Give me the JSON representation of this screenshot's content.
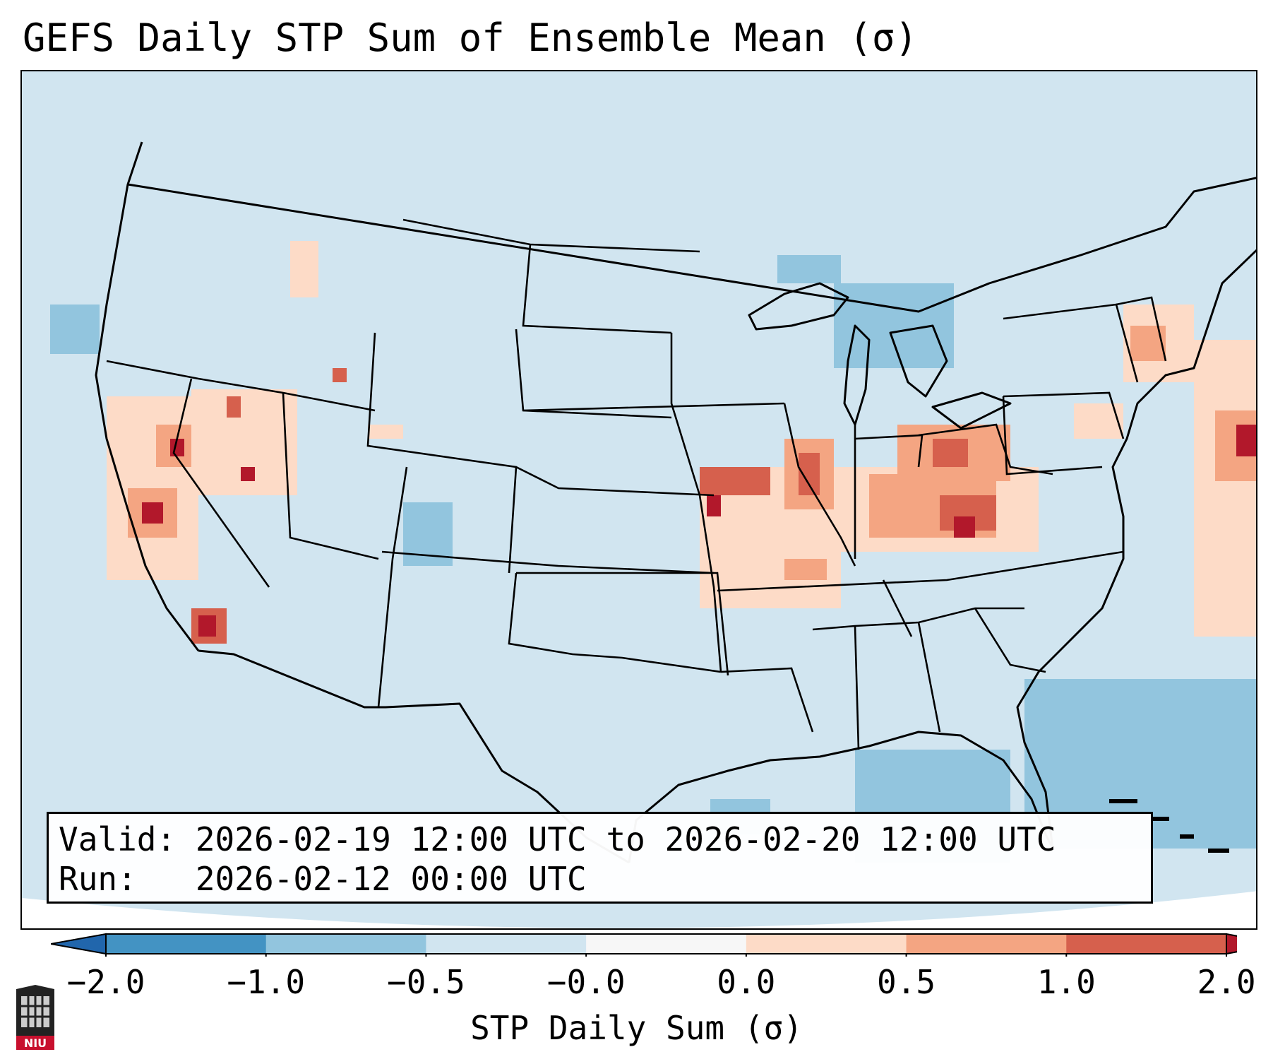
{
  "title": "GEFS Daily STP Sum of Ensemble Mean (σ)",
  "info": {
    "valid_line": "Valid: 2026-02-19 12:00 UTC to 2026-02-20 12:00 UTC",
    "run_line": "Run:   2026-02-12 00:00 UTC"
  },
  "colorbar": {
    "label": "STP Daily Sum (σ)",
    "ticks": [
      "−2.0",
      "−1.0",
      "−0.5",
      "−0.0",
      "0.0",
      "0.5",
      "1.0",
      "2.0"
    ],
    "bins": [
      {
        "color": "#4393c3"
      },
      {
        "color": "#92c5de"
      },
      {
        "color": "#d1e5f0"
      },
      {
        "color": "#f7f7f7"
      },
      {
        "color": "#fddbc7"
      },
      {
        "color": "#f4a582"
      },
      {
        "color": "#d6604d"
      }
    ],
    "under_color": "#2166ac",
    "over_color": "#b2182b"
  },
  "logo": {
    "text": "NIU"
  },
  "colors": {
    "background": "#d1e5f0",
    "negative": "#92c5de",
    "light_positive": "#fddbc7",
    "mid_positive": "#f4a582",
    "strong_positive": "#d6604d",
    "max_positive": "#b2182b"
  }
}
